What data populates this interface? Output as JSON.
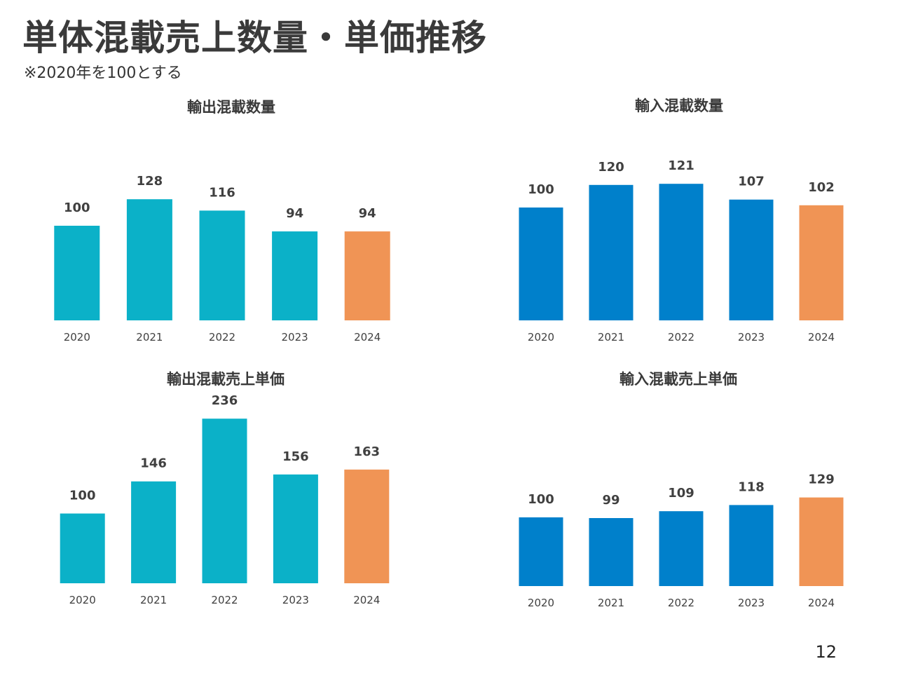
{
  "page": {
    "title": "単体混載売上数量・単価推移",
    "note": "※2020年を100とする",
    "page_number": "12"
  },
  "colors": {
    "export": "#0bb1c8",
    "import": "#0080cb",
    "highlight": "#f09455"
  },
  "chart_data": [
    {
      "type": "bar",
      "title": "輸出混載数量",
      "categories": [
        "2020",
        "2021",
        "2022",
        "2023",
        "2024"
      ],
      "values": [
        100,
        128,
        116,
        94,
        94
      ],
      "bar_color": "#0bb1c8",
      "highlight_color": "#f09455",
      "highlight_index": 4
    },
    {
      "type": "bar",
      "title": "輸入混載数量",
      "categories": [
        "2020",
        "2021",
        "2022",
        "2023",
        "2024"
      ],
      "values": [
        100,
        120,
        121,
        107,
        102
      ],
      "bar_color": "#0080cb",
      "highlight_color": "#f09455",
      "highlight_index": 4
    },
    {
      "type": "bar",
      "title": "輸出混載売上単価",
      "categories": [
        "2020",
        "2021",
        "2022",
        "2023",
        "2024"
      ],
      "values": [
        100,
        146,
        236,
        156,
        163
      ],
      "bar_color": "#0bb1c8",
      "highlight_color": "#f09455",
      "highlight_index": 4
    },
    {
      "type": "bar",
      "title": "輸入混載売上単価",
      "categories": [
        "2020",
        "2021",
        "2022",
        "2023",
        "2024"
      ],
      "values": [
        100,
        99,
        109,
        118,
        129
      ],
      "bar_color": "#0080cb",
      "highlight_color": "#f09455",
      "highlight_index": 4
    }
  ]
}
